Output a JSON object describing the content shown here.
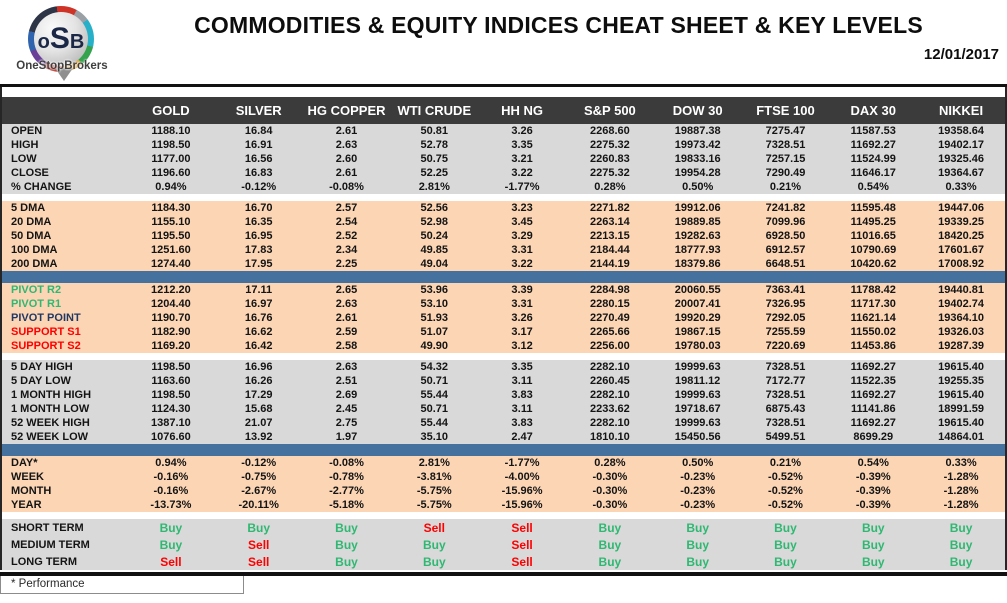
{
  "header": {
    "logo_monogram_start": "o",
    "logo_monogram_big": "S",
    "logo_monogram_end": "B",
    "logo_brand": "OneStopBrokers",
    "title": "COMMODITIES & EQUITY INDICES CHEAT SHEET & KEY LEVELS",
    "date": "12/01/2017"
  },
  "footer": {
    "note": "* Performance"
  },
  "colors": {
    "header_bg": "#3b3b3b",
    "gray_row": "#d9d9d9",
    "peach_row": "#fcd5b4",
    "divider_blue": "#44719e",
    "green": "#2eb872",
    "red": "#ff0000",
    "navy": "#203864",
    "buy": "#2eb872",
    "sell": "#ff0000"
  },
  "chart_data": {
    "type": "table",
    "title": "COMMODITIES & EQUITY INDICES CHEAT SHEET & KEY LEVELS",
    "date": "12/01/2017",
    "columns": [
      "GOLD",
      "SILVER",
      "HG COPPER",
      "WTI CRUDE",
      "HH NG",
      "S&P 500",
      "DOW 30",
      "FTSE 100",
      "DAX 30",
      "NIKKEI"
    ],
    "sections": [
      {
        "id": "ohlc",
        "bg": "gray",
        "divider_after": "gap",
        "rows": [
          {
            "label": "OPEN",
            "values": [
              "1188.10",
              "16.84",
              "2.61",
              "50.81",
              "3.26",
              "2268.60",
              "19887.38",
              "7275.47",
              "11587.53",
              "19358.64"
            ]
          },
          {
            "label": "HIGH",
            "values": [
              "1198.50",
              "16.91",
              "2.63",
              "52.78",
              "3.35",
              "2275.32",
              "19973.42",
              "7328.51",
              "11692.27",
              "19402.17"
            ]
          },
          {
            "label": "LOW",
            "values": [
              "1177.00",
              "16.56",
              "2.60",
              "50.75",
              "3.21",
              "2260.83",
              "19833.16",
              "7257.15",
              "11524.99",
              "19325.46"
            ]
          },
          {
            "label": "CLOSE",
            "values": [
              "1196.60",
              "16.83",
              "2.61",
              "52.25",
              "3.22",
              "2275.32",
              "19954.28",
              "7290.49",
              "11646.17",
              "19364.67"
            ]
          },
          {
            "label": "% CHANGE",
            "values": [
              "0.94%",
              "-0.12%",
              "-0.08%",
              "2.81%",
              "-1.77%",
              "0.28%",
              "0.50%",
              "0.21%",
              "0.54%",
              "0.33%"
            ]
          }
        ]
      },
      {
        "id": "dma",
        "bg": "peach",
        "divider_after": "bar",
        "rows": [
          {
            "label": "5 DMA",
            "values": [
              "1184.30",
              "16.70",
              "2.57",
              "52.56",
              "3.23",
              "2271.82",
              "19912.06",
              "7241.82",
              "11595.48",
              "19447.06"
            ]
          },
          {
            "label": "20 DMA",
            "values": [
              "1155.10",
              "16.35",
              "2.54",
              "52.98",
              "3.45",
              "2263.14",
              "19889.85",
              "7099.96",
              "11495.25",
              "19339.25"
            ]
          },
          {
            "label": "50 DMA",
            "values": [
              "1195.50",
              "16.95",
              "2.52",
              "50.24",
              "3.29",
              "2213.15",
              "19282.63",
              "6928.50",
              "11016.65",
              "18420.25"
            ]
          },
          {
            "label": "100 DMA",
            "values": [
              "1251.60",
              "17.83",
              "2.34",
              "49.85",
              "3.31",
              "2184.44",
              "18777.93",
              "6912.57",
              "10790.69",
              "17601.67"
            ]
          },
          {
            "label": "200 DMA",
            "values": [
              "1274.40",
              "17.95",
              "2.25",
              "49.04",
              "3.22",
              "2144.19",
              "18379.86",
              "6648.51",
              "10420.62",
              "17008.92"
            ]
          }
        ]
      },
      {
        "id": "pivots",
        "bg": "peach",
        "divider_after": "gap",
        "rows": [
          {
            "label": "PIVOT R2",
            "label_color": "green",
            "values": [
              "1212.20",
              "17.11",
              "2.65",
              "53.96",
              "3.39",
              "2284.98",
              "20060.55",
              "7363.41",
              "11788.42",
              "19440.81"
            ]
          },
          {
            "label": "PIVOT R1",
            "label_color": "green",
            "values": [
              "1204.40",
              "16.97",
              "2.63",
              "53.10",
              "3.31",
              "2280.15",
              "20007.41",
              "7326.95",
              "11717.30",
              "19402.74"
            ]
          },
          {
            "label": "PIVOT POINT",
            "label_color": "navy",
            "values": [
              "1190.70",
              "16.76",
              "2.61",
              "51.93",
              "3.26",
              "2270.49",
              "19920.29",
              "7292.05",
              "11621.14",
              "19364.10"
            ]
          },
          {
            "label": "SUPPORT S1",
            "label_color": "red",
            "values": [
              "1182.90",
              "16.62",
              "2.59",
              "51.07",
              "3.17",
              "2265.66",
              "19867.15",
              "7255.59",
              "11550.02",
              "19326.03"
            ]
          },
          {
            "label": "SUPPORT S2",
            "label_color": "red",
            "values": [
              "1169.20",
              "16.42",
              "2.58",
              "49.90",
              "3.12",
              "2256.00",
              "19780.03",
              "7220.69",
              "11453.86",
              "19287.39"
            ]
          }
        ]
      },
      {
        "id": "ranges",
        "bg": "gray",
        "divider_after": "bar",
        "rows": [
          {
            "label": "5 DAY HIGH",
            "values": [
              "1198.50",
              "16.96",
              "2.63",
              "54.32",
              "3.35",
              "2282.10",
              "19999.63",
              "7328.51",
              "11692.27",
              "19615.40"
            ]
          },
          {
            "label": "5 DAY LOW",
            "values": [
              "1163.60",
              "16.26",
              "2.51",
              "50.71",
              "3.11",
              "2260.45",
              "19811.12",
              "7172.77",
              "11522.35",
              "19255.35"
            ]
          },
          {
            "label": "1 MONTH HIGH",
            "values": [
              "1198.50",
              "17.29",
              "2.69",
              "55.44",
              "3.83",
              "2282.10",
              "19999.63",
              "7328.51",
              "11692.27",
              "19615.40"
            ]
          },
          {
            "label": "1 MONTH LOW",
            "values": [
              "1124.30",
              "15.68",
              "2.45",
              "50.71",
              "3.11",
              "2233.62",
              "19718.67",
              "6875.43",
              "11141.86",
              "18991.59"
            ]
          },
          {
            "label": "52 WEEK HIGH",
            "values": [
              "1387.10",
              "21.07",
              "2.75",
              "55.44",
              "3.83",
              "2282.10",
              "19999.63",
              "7328.51",
              "11692.27",
              "19615.40"
            ]
          },
          {
            "label": "52 WEEK LOW",
            "values": [
              "1076.60",
              "13.92",
              "1.97",
              "35.10",
              "2.47",
              "1810.10",
              "15450.56",
              "5499.51",
              "8699.29",
              "14864.01"
            ]
          }
        ]
      },
      {
        "id": "performance",
        "bg": "peach",
        "divider_after": "gap",
        "rows": [
          {
            "label": "DAY*",
            "values": [
              "0.94%",
              "-0.12%",
              "-0.08%",
              "2.81%",
              "-1.77%",
              "0.28%",
              "0.50%",
              "0.21%",
              "0.54%",
              "0.33%"
            ]
          },
          {
            "label": "WEEK",
            "values": [
              "-0.16%",
              "-0.75%",
              "-0.78%",
              "-3.81%",
              "-4.00%",
              "-0.30%",
              "-0.23%",
              "-0.52%",
              "-0.39%",
              "-1.28%"
            ]
          },
          {
            "label": "MONTH",
            "values": [
              "-0.16%",
              "-2.67%",
              "-2.77%",
              "-5.75%",
              "-15.96%",
              "-0.30%",
              "-0.23%",
              "-0.52%",
              "-0.39%",
              "-1.28%"
            ]
          },
          {
            "label": "YEAR",
            "values": [
              "-13.73%",
              "-20.11%",
              "-5.18%",
              "-5.75%",
              "-15.96%",
              "-0.30%",
              "-0.23%",
              "-0.52%",
              "-0.39%",
              "-1.28%"
            ]
          }
        ]
      },
      {
        "id": "signals",
        "bg": "gray",
        "divider_after": "none",
        "rows": [
          {
            "label": "SHORT TERM",
            "values": [
              "Buy",
              "Buy",
              "Buy",
              "Sell",
              "Sell",
              "Buy",
              "Buy",
              "Buy",
              "Buy",
              "Buy"
            ]
          },
          {
            "label": "MEDIUM TERM",
            "values": [
              "Buy",
              "Sell",
              "Buy",
              "Buy",
              "Sell",
              "Buy",
              "Buy",
              "Buy",
              "Buy",
              "Buy"
            ]
          },
          {
            "label": "LONG TERM",
            "values": [
              "Sell",
              "Sell",
              "Buy",
              "Buy",
              "Sell",
              "Buy",
              "Buy",
              "Buy",
              "Buy",
              "Buy"
            ]
          }
        ]
      }
    ]
  }
}
